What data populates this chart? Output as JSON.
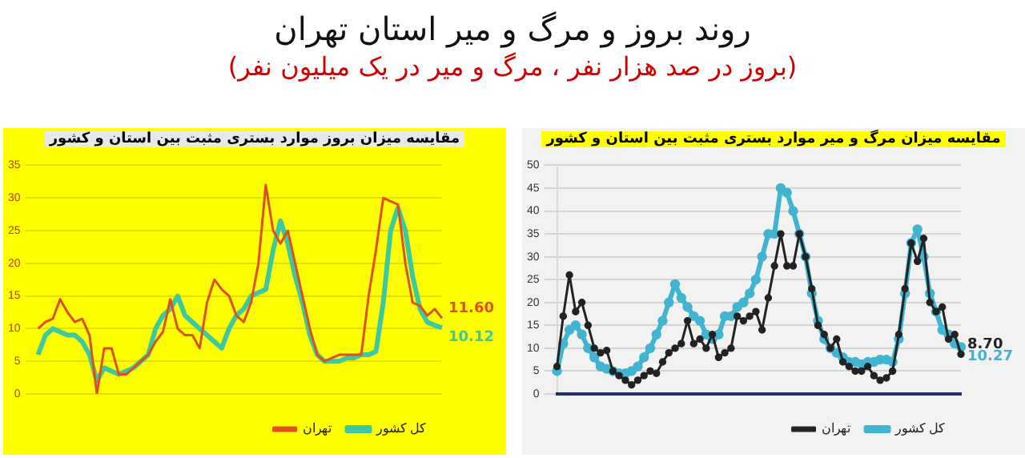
{
  "chart_data": [
    {
      "type": "line",
      "title": "روند بروز و مرگ و میر استان تهران",
      "subtitle": "(بروز در صد هزار نفر ، مرگ و میر در یک میلیون نفر)",
      "categories": [
        null,
        null,
        null,
        null,
        null,
        null,
        null,
        null,
        null,
        null,
        null,
        null,
        null,
        null,
        null,
        null,
        null,
        null,
        null,
        null,
        null,
        null,
        null,
        null,
        null,
        null,
        null,
        null,
        null,
        null,
        null,
        null,
        null,
        null,
        null,
        null,
        null,
        null,
        null,
        null,
        null,
        null,
        null,
        null,
        null,
        null,
        null,
        null,
        null,
        null,
        null,
        null,
        null,
        null,
        null,
        null
      ],
      "series": [
        {
          "name": "تهران",
          "color": "#e0501e",
          "values": [
            10,
            11,
            11.5,
            14.5,
            12.5,
            11,
            11.5,
            9,
            0,
            7,
            7,
            3,
            3,
            4,
            5,
            6,
            8,
            9.5,
            14.5,
            10,
            9,
            9,
            7,
            14,
            17.5,
            16,
            15,
            12,
            11,
            14,
            20,
            32,
            25,
            23,
            25,
            20,
            15,
            10,
            6,
            5,
            5.5,
            6,
            6,
            6,
            6,
            15,
            22,
            30,
            29.5,
            29,
            20,
            14,
            13.5,
            12,
            13,
            11.6
          ],
          "value_labels": [
            null,
            null,
            null,
            null,
            null,
            null,
            null,
            null,
            null,
            null,
            null,
            null,
            null,
            null,
            null,
            null,
            null,
            null,
            null,
            null,
            null,
            null,
            null,
            null,
            null,
            null,
            null,
            null,
            null,
            null,
            null,
            null,
            null,
            null,
            null,
            null,
            null,
            null,
            null,
            null,
            null,
            null,
            null,
            null,
            null,
            null,
            null,
            null,
            null,
            null,
            null,
            null,
            null,
            null,
            null,
            "11.60"
          ]
        },
        {
          "name": "کل کشور",
          "color": "#3cc8a0",
          "values": [
            6,
            9,
            10,
            9.5,
            9,
            9,
            8,
            6,
            2,
            4,
            3.5,
            3,
            3.5,
            4,
            5,
            6,
            10,
            12,
            13,
            15,
            12,
            11,
            10,
            9,
            8,
            7,
            10,
            12,
            13,
            15,
            15.5,
            16,
            22,
            26.5,
            23,
            18,
            14,
            9,
            6,
            5,
            5,
            5,
            5.5,
            5.5,
            6,
            6,
            6.5,
            14,
            25,
            28.5,
            25,
            18,
            13,
            11,
            10.5,
            10.12
          ],
          "value_labels": [
            null,
            null,
            null,
            null,
            null,
            null,
            null,
            null,
            null,
            null,
            null,
            null,
            null,
            null,
            null,
            null,
            null,
            null,
            null,
            null,
            null,
            null,
            null,
            null,
            null,
            null,
            null,
            null,
            null,
            null,
            null,
            null,
            null,
            null,
            null,
            null,
            null,
            null,
            null,
            null,
            null,
            null,
            null,
            null,
            null,
            null,
            null,
            null,
            null,
            null,
            null,
            null,
            null,
            null,
            null,
            "10.12"
          ]
        }
      ],
      "annotations": [
        "مقایسه میزان بروز موارد بستری مثبت بین استان و کشور"
      ],
      "ylim": [
        0,
        35
      ],
      "yticks": [
        0,
        5,
        10,
        15,
        20,
        25,
        30,
        35
      ],
      "grid": "y",
      "legend": "bottom right",
      "marker": "none",
      "tick_labels": "y"
    },
    {
      "type": "line",
      "categories": [
        null,
        null,
        null,
        null,
        null,
        null,
        null,
        null,
        null,
        null,
        null,
        null,
        null,
        null,
        null,
        null,
        null,
        null,
        null,
        null,
        null,
        null,
        null,
        null,
        null,
        null,
        null,
        null,
        null,
        null,
        null,
        null,
        null,
        null,
        null,
        null,
        null,
        null,
        null,
        null,
        null,
        null,
        null,
        null,
        null,
        null,
        null,
        null,
        null,
        null,
        null,
        null,
        null,
        null,
        null,
        null,
        null,
        null,
        null,
        null,
        null,
        null,
        null,
        null,
        null,
        null
      ],
      "series": [
        {
          "name": "تهران",
          "color": "#222222",
          "values": [
            6,
            17,
            26,
            18,
            20,
            15,
            10,
            9,
            9.5,
            5,
            4,
            3,
            2,
            3,
            4,
            5,
            4.5,
            7,
            9,
            10,
            11,
            16,
            11,
            12,
            10,
            13,
            8,
            9,
            10,
            17,
            16,
            17,
            18,
            14,
            21,
            28,
            35,
            28,
            28,
            35,
            30,
            23,
            15,
            13,
            10,
            12,
            7,
            6,
            5,
            5,
            6,
            4,
            3,
            3.5,
            5,
            13,
            23,
            33,
            29,
            34,
            20,
            18,
            19,
            12,
            13,
            8.7
          ],
          "value_labels": [
            null,
            null,
            null,
            null,
            null,
            null,
            null,
            null,
            null,
            null,
            null,
            null,
            null,
            null,
            null,
            null,
            null,
            null,
            null,
            null,
            null,
            null,
            null,
            null,
            null,
            null,
            null,
            null,
            null,
            null,
            null,
            null,
            null,
            null,
            null,
            null,
            null,
            null,
            null,
            null,
            null,
            null,
            null,
            null,
            null,
            null,
            null,
            null,
            null,
            null,
            null,
            null,
            null,
            null,
            null,
            null,
            null,
            null,
            null,
            null,
            null,
            null,
            null,
            null,
            null,
            "8.70"
          ]
        },
        {
          "name": "کل کشور",
          "color": "#40b4d0",
          "values": [
            5,
            11,
            14,
            15,
            13,
            10,
            8,
            6,
            5.5,
            5,
            4.5,
            4.5,
            5,
            6,
            8,
            10,
            13,
            16,
            20,
            24,
            21,
            19,
            17,
            16,
            13,
            12,
            13,
            17,
            17,
            19,
            20,
            22,
            25,
            30,
            35,
            35,
            45,
            44,
            40,
            35,
            30,
            22,
            16,
            12,
            10,
            9,
            8,
            7,
            7,
            6.5,
            7,
            7,
            7.5,
            7.5,
            7,
            12,
            22,
            33,
            36,
            30,
            22,
            18,
            14,
            13,
            11,
            10.27
          ],
          "value_labels": [
            null,
            null,
            null,
            null,
            null,
            null,
            null,
            null,
            null,
            null,
            null,
            null,
            null,
            null,
            null,
            null,
            null,
            null,
            null,
            null,
            null,
            null,
            null,
            null,
            null,
            null,
            null,
            null,
            null,
            null,
            null,
            null,
            null,
            null,
            null,
            null,
            null,
            null,
            null,
            null,
            null,
            null,
            null,
            null,
            null,
            null,
            null,
            null,
            null,
            null,
            null,
            null,
            null,
            null,
            null,
            null,
            null,
            null,
            null,
            null,
            null,
            null,
            null,
            null,
            null,
            "10.27"
          ]
        }
      ],
      "annotations": [
        "مقایسه میزان مرگ و میر موارد بستری مثبت بین استان و کشور"
      ],
      "ylim": [
        0,
        50
      ],
      "yticks": [
        0,
        5,
        10,
        15,
        20,
        25,
        30,
        35,
        40,
        45,
        50
      ],
      "grid": "y",
      "legend": "bottom right",
      "marker": "circle",
      "tick_labels": "y"
    }
  ]
}
